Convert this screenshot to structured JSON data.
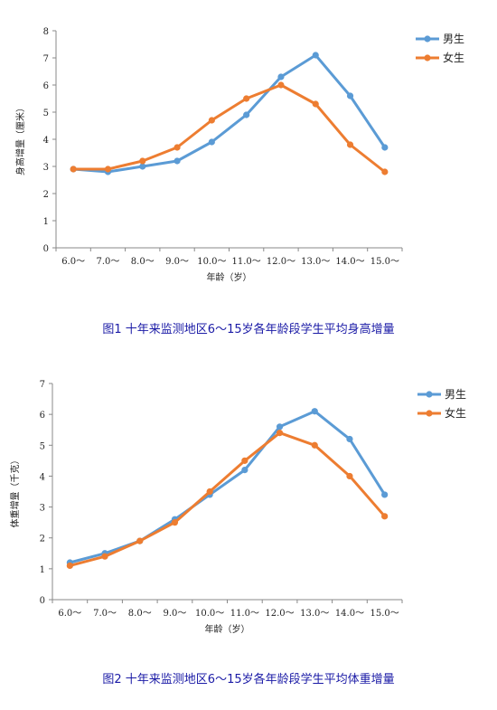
{
  "chart_data": [
    {
      "type": "line",
      "caption": "图1 十年来监测地区6～15岁各年龄段学生平均身高增量",
      "xlabel": "年龄（岁）",
      "ylabel": "身高增量（厘米）",
      "categories": [
        "6.0～",
        "7.0～",
        "8.0～",
        "9.0～",
        "10.0～",
        "11.0～",
        "12.0～",
        "13.0～",
        "14.0～",
        "15.0～"
      ],
      "ylim": [
        0,
        8
      ],
      "yticks": [
        0,
        1,
        2,
        3,
        4,
        5,
        6,
        7,
        8
      ],
      "legend_position": "top-right",
      "series": [
        {
          "name": "男生",
          "color": "#5b9bd5",
          "values": [
            2.9,
            2.8,
            3.0,
            3.2,
            3.9,
            4.9,
            6.3,
            7.1,
            5.6,
            3.7
          ]
        },
        {
          "name": "女生",
          "color": "#ed7d31",
          "values": [
            2.9,
            2.9,
            3.2,
            3.7,
            4.7,
            5.5,
            6.0,
            5.3,
            3.8,
            2.8
          ]
        }
      ]
    },
    {
      "type": "line",
      "caption": "图2 十年来监测地区6～15岁各年龄段学生平均体重增量",
      "xlabel": "年龄（岁）",
      "ylabel": "体重增量（千克）",
      "categories": [
        "6.0～",
        "7.0～",
        "8.0～",
        "9.0～",
        "10.0～",
        "11.0～",
        "12.0～",
        "13.0～",
        "14.0～",
        "15.0～"
      ],
      "ylim": [
        0,
        7
      ],
      "yticks": [
        0,
        1,
        2,
        3,
        4,
        5,
        6,
        7
      ],
      "legend_position": "top-right",
      "series": [
        {
          "name": "男生",
          "color": "#5b9bd5",
          "values": [
            1.2,
            1.5,
            1.9,
            2.6,
            3.4,
            4.2,
            5.6,
            6.1,
            5.2,
            3.4
          ]
        },
        {
          "name": "女生",
          "color": "#ed7d31",
          "values": [
            1.1,
            1.4,
            1.9,
            2.5,
            3.5,
            4.5,
            5.4,
            5.0,
            4.0,
            2.7
          ]
        }
      ]
    }
  ]
}
